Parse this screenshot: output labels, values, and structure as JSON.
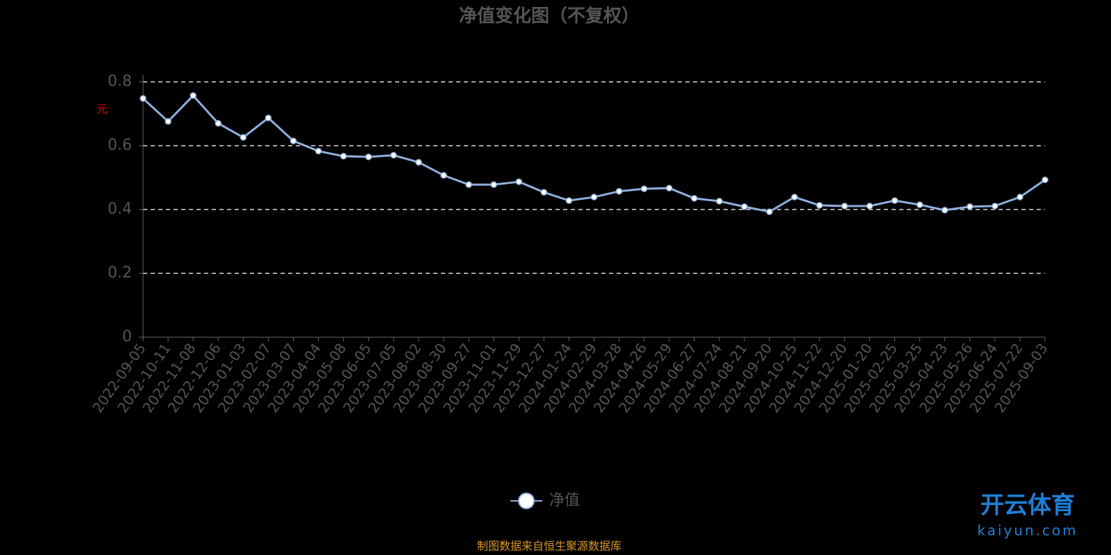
{
  "chart_data": {
    "type": "line",
    "title": "净值变化图（不复权）",
    "y_label": "元",
    "categories": [
      "2022-09-05",
      "2022-10-11",
      "2022-11-08",
      "2022-12-06",
      "2023-01-03",
      "2023-02-07",
      "2023-03-07",
      "2023-04-04",
      "2023-05-08",
      "2023-06-05",
      "2023-07-05",
      "2023-08-02",
      "2023-08-30",
      "2023-09-27",
      "2023-11-01",
      "2023-11-29",
      "2023-12-27",
      "2024-01-24",
      "2024-02-29",
      "2024-03-28",
      "2024-04-26",
      "2024-05-29",
      "2024-06-27",
      "2024-07-24",
      "2024-08-21",
      "2024-09-20",
      "2024-10-25",
      "2024-11-22",
      "2024-12-20",
      "2025-01-20",
      "2025-02-25",
      "2025-03-25",
      "2025-04-23",
      "2025-05-26",
      "2025-06-24",
      "2025-07-22",
      "2025-09-03"
    ],
    "series": [
      {
        "name": "净值",
        "color": "#8fb0dd",
        "values": [
          0.748,
          0.676,
          0.757,
          0.67,
          0.626,
          0.687,
          0.615,
          0.583,
          0.567,
          0.565,
          0.57,
          0.548,
          0.507,
          0.478,
          0.478,
          0.487,
          0.454,
          0.428,
          0.439,
          0.457,
          0.465,
          0.467,
          0.435,
          0.426,
          0.409,
          0.393,
          0.439,
          0.413,
          0.411,
          0.411,
          0.428,
          0.415,
          0.398,
          0.409,
          0.411,
          0.439,
          0.493
        ]
      }
    ],
    "ylim": [
      0,
      0.8
    ],
    "yticks": [
      0,
      0.2,
      0.4,
      0.6,
      0.8
    ],
    "grid": true,
    "source": "制图数据来自恒生聚源数据库",
    "watermark": {
      "brand": "开云体育",
      "site": "kaiyun.com"
    }
  }
}
